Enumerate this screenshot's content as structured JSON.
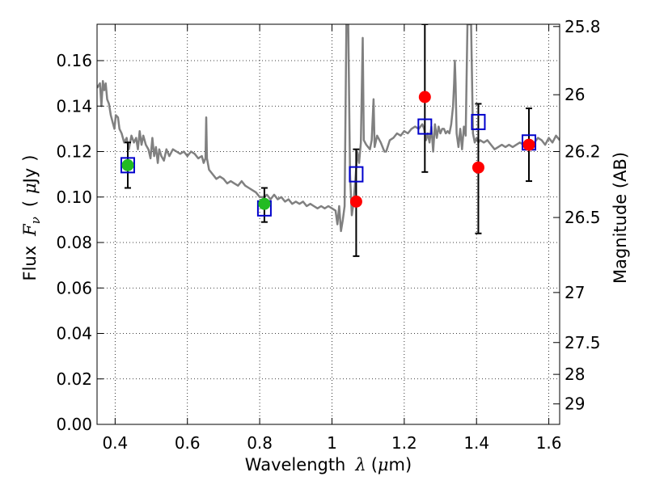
{
  "chart_data": {
    "type": "scatter",
    "xlabel": {
      "prefix": "Wavelength",
      "symbol": "λ",
      "unit_open": "(",
      "unit_mu": "μ",
      "unit_rest": "m)"
    },
    "ylabel": {
      "prefix": "Flux",
      "symbol": "F",
      "subscript": "ν",
      "unit_open": "(",
      "unit_mu": "μ",
      "unit_rest": "Jy",
      "unit_close": ")"
    },
    "y2label": "Magnitude (AB)",
    "xlim": [
      0.35,
      1.63
    ],
    "ylim": [
      0.0,
      0.176
    ],
    "grid": true,
    "x_ticks": [
      {
        "value": 0.4,
        "label": "0.4"
      },
      {
        "value": 0.6,
        "label": "0.6"
      },
      {
        "value": 0.8,
        "label": "0.8"
      },
      {
        "value": 1.0,
        "label": "1"
      },
      {
        "value": 1.2,
        "label": "1.2"
      },
      {
        "value": 1.4,
        "label": "1.4"
      },
      {
        "value": 1.6,
        "label": "1.6"
      }
    ],
    "y_ticks": [
      {
        "value": 0.0,
        "label": "0.00"
      },
      {
        "value": 0.02,
        "label": "0.02"
      },
      {
        "value": 0.04,
        "label": "0.04"
      },
      {
        "value": 0.06,
        "label": "0.06"
      },
      {
        "value": 0.08,
        "label": "0.08"
      },
      {
        "value": 0.1,
        "label": "0.10"
      },
      {
        "value": 0.12,
        "label": "0.12"
      },
      {
        "value": 0.14,
        "label": "0.14"
      },
      {
        "value": 0.16,
        "label": "0.16"
      }
    ],
    "y2_ticks": [
      {
        "flux": 0.175,
        "label": "25.8"
      },
      {
        "flux": 0.145,
        "label": "26"
      },
      {
        "flux": 0.12,
        "label": "26.2"
      },
      {
        "flux": 0.091,
        "label": "26.5"
      },
      {
        "flux": 0.058,
        "label": "27"
      },
      {
        "flux": 0.036,
        "label": "27.5"
      },
      {
        "flux": 0.022,
        "label": "28"
      },
      {
        "flux": 0.009,
        "label": "29"
      }
    ],
    "series": [
      {
        "style": "line",
        "color": "#808080",
        "points": [
          [
            0.35,
            0.148
          ],
          [
            0.358,
            0.15
          ],
          [
            0.362,
            0.14
          ],
          [
            0.366,
            0.151
          ],
          [
            0.37,
            0.147
          ],
          [
            0.374,
            0.15
          ],
          [
            0.378,
            0.143
          ],
          [
            0.383,
            0.141
          ],
          [
            0.388,
            0.136
          ],
          [
            0.393,
            0.133
          ],
          [
            0.398,
            0.13
          ],
          [
            0.402,
            0.136
          ],
          [
            0.408,
            0.135
          ],
          [
            0.412,
            0.13
          ],
          [
            0.418,
            0.128
          ],
          [
            0.425,
            0.124
          ],
          [
            0.432,
            0.126
          ],
          [
            0.438,
            0.121
          ],
          [
            0.445,
            0.127
          ],
          [
            0.452,
            0.124
          ],
          [
            0.458,
            0.126
          ],
          [
            0.463,
            0.121
          ],
          [
            0.468,
            0.129
          ],
          [
            0.473,
            0.123
          ],
          [
            0.478,
            0.127
          ],
          [
            0.485,
            0.123
          ],
          [
            0.492,
            0.121
          ],
          [
            0.498,
            0.117
          ],
          [
            0.503,
            0.126
          ],
          [
            0.508,
            0.118
          ],
          [
            0.513,
            0.122
          ],
          [
            0.518,
            0.115
          ],
          [
            0.522,
            0.121
          ],
          [
            0.528,
            0.118
          ],
          [
            0.535,
            0.116
          ],
          [
            0.542,
            0.121
          ],
          [
            0.55,
            0.118
          ],
          [
            0.56,
            0.121
          ],
          [
            0.57,
            0.12
          ],
          [
            0.58,
            0.119
          ],
          [
            0.59,
            0.12
          ],
          [
            0.6,
            0.118
          ],
          [
            0.61,
            0.12
          ],
          [
            0.62,
            0.119
          ],
          [
            0.63,
            0.117
          ],
          [
            0.64,
            0.118
          ],
          [
            0.645,
            0.115
          ],
          [
            0.65,
            0.117
          ],
          [
            0.652,
            0.135
          ],
          [
            0.654,
            0.117
          ],
          [
            0.66,
            0.112
          ],
          [
            0.67,
            0.11
          ],
          [
            0.68,
            0.108
          ],
          [
            0.69,
            0.109
          ],
          [
            0.7,
            0.108
          ],
          [
            0.71,
            0.106
          ],
          [
            0.72,
            0.107
          ],
          [
            0.73,
            0.106
          ],
          [
            0.74,
            0.105
          ],
          [
            0.75,
            0.107
          ],
          [
            0.76,
            0.105
          ],
          [
            0.77,
            0.104
          ],
          [
            0.78,
            0.103
          ],
          [
            0.79,
            0.102
          ],
          [
            0.8,
            0.1
          ],
          [
            0.81,
            0.1
          ],
          [
            0.82,
            0.101
          ],
          [
            0.83,
            0.099
          ],
          [
            0.84,
            0.101
          ],
          [
            0.85,
            0.099
          ],
          [
            0.86,
            0.1
          ],
          [
            0.87,
            0.098
          ],
          [
            0.88,
            0.099
          ],
          [
            0.89,
            0.097
          ],
          [
            0.9,
            0.098
          ],
          [
            0.91,
            0.097
          ],
          [
            0.92,
            0.098
          ],
          [
            0.93,
            0.096
          ],
          [
            0.94,
            0.097
          ],
          [
            0.95,
            0.096
          ],
          [
            0.96,
            0.095
          ],
          [
            0.97,
            0.096
          ],
          [
            0.98,
            0.095
          ],
          [
            0.99,
            0.096
          ],
          [
            1.0,
            0.095
          ],
          [
            1.01,
            0.094
          ],
          [
            1.015,
            0.088
          ],
          [
            1.02,
            0.096
          ],
          [
            1.025,
            0.085
          ],
          [
            1.03,
            0.09
          ],
          [
            1.035,
            0.096
          ],
          [
            1.04,
            0.176
          ],
          [
            1.045,
            0.176
          ],
          [
            1.05,
            0.11
          ],
          [
            1.055,
            0.092
          ],
          [
            1.06,
            0.098
          ],
          [
            1.065,
            0.108
          ],
          [
            1.07,
            0.12
          ],
          [
            1.075,
            0.115
          ],
          [
            1.08,
            0.124
          ],
          [
            1.085,
            0.17
          ],
          [
            1.088,
            0.125
          ],
          [
            1.095,
            0.123
          ],
          [
            1.105,
            0.121
          ],
          [
            1.11,
            0.125
          ],
          [
            1.115,
            0.143
          ],
          [
            1.118,
            0.122
          ],
          [
            1.125,
            0.127
          ],
          [
            1.135,
            0.124
          ],
          [
            1.145,
            0.12
          ],
          [
            1.15,
            0.12
          ],
          [
            1.16,
            0.125
          ],
          [
            1.17,
            0.126
          ],
          [
            1.18,
            0.128
          ],
          [
            1.19,
            0.127
          ],
          [
            1.2,
            0.129
          ],
          [
            1.21,
            0.128
          ],
          [
            1.22,
            0.13
          ],
          [
            1.23,
            0.131
          ],
          [
            1.24,
            0.13
          ],
          [
            1.25,
            0.132
          ],
          [
            1.255,
            0.13
          ],
          [
            1.26,
            0.125
          ],
          [
            1.265,
            0.128
          ],
          [
            1.27,
            0.124
          ],
          [
            1.275,
            0.131
          ],
          [
            1.28,
            0.12
          ],
          [
            1.285,
            0.132
          ],
          [
            1.29,
            0.126
          ],
          [
            1.295,
            0.131
          ],
          [
            1.3,
            0.128
          ],
          [
            1.305,
            0.13
          ],
          [
            1.31,
            0.13
          ],
          [
            1.315,
            0.128
          ],
          [
            1.32,
            0.129
          ],
          [
            1.325,
            0.128
          ],
          [
            1.33,
            0.132
          ],
          [
            1.335,
            0.14
          ],
          [
            1.338,
            0.15
          ],
          [
            1.34,
            0.16
          ],
          [
            1.342,
            0.15
          ],
          [
            1.345,
            0.128
          ],
          [
            1.35,
            0.122
          ],
          [
            1.355,
            0.13
          ],
          [
            1.36,
            0.121
          ],
          [
            1.365,
            0.131
          ],
          [
            1.37,
            0.127
          ],
          [
            1.375,
            0.176
          ],
          [
            1.385,
            0.176
          ],
          [
            1.39,
            0.128
          ],
          [
            1.395,
            0.124
          ],
          [
            1.4,
            0.126
          ],
          [
            1.405,
            0.124
          ],
          [
            1.41,
            0.125
          ],
          [
            1.42,
            0.124
          ],
          [
            1.43,
            0.125
          ],
          [
            1.44,
            0.123
          ],
          [
            1.45,
            0.121
          ],
          [
            1.46,
            0.122
          ],
          [
            1.47,
            0.123
          ],
          [
            1.48,
            0.122
          ],
          [
            1.49,
            0.123
          ],
          [
            1.5,
            0.122
          ],
          [
            1.51,
            0.123
          ],
          [
            1.52,
            0.124
          ],
          [
            1.53,
            0.123
          ],
          [
            1.54,
            0.124
          ],
          [
            1.55,
            0.123
          ],
          [
            1.56,
            0.124
          ],
          [
            1.57,
            0.126
          ],
          [
            1.58,
            0.125
          ],
          [
            1.59,
            0.123
          ],
          [
            1.6,
            0.126
          ],
          [
            1.61,
            0.124
          ],
          [
            1.62,
            0.127
          ],
          [
            1.63,
            0.125
          ]
        ]
      },
      {
        "style": "open-square",
        "color": "#0000cc",
        "points": [
          [
            0.435,
            0.114
          ],
          [
            0.813,
            0.095
          ],
          [
            1.067,
            0.11
          ],
          [
            1.257,
            0.131
          ],
          [
            1.405,
            0.133
          ],
          [
            1.545,
            0.124
          ]
        ]
      },
      {
        "style": "filled-circle",
        "color": "#22bb22",
        "points": [
          [
            0.435,
            0.114
          ],
          [
            0.813,
            0.097
          ]
        ]
      },
      {
        "style": "filled-circle",
        "color": "#ff0000",
        "points": [
          [
            1.067,
            0.098
          ],
          [
            1.257,
            0.144
          ],
          [
            1.405,
            0.113
          ],
          [
            1.545,
            0.123
          ]
        ]
      },
      {
        "style": "errorbar",
        "color": "#000000",
        "items": [
          {
            "x": 0.435,
            "lo": 0.104,
            "hi": 0.124
          },
          {
            "x": 0.813,
            "lo": 0.089,
            "hi": 0.104
          },
          {
            "x": 1.067,
            "lo": 0.074,
            "hi": 0.121
          },
          {
            "x": 1.257,
            "lo": 0.111,
            "hi": 0.176
          },
          {
            "x": 1.405,
            "lo": 0.084,
            "hi": 0.141
          },
          {
            "x": 1.545,
            "lo": 0.107,
            "hi": 0.139
          }
        ]
      }
    ]
  }
}
